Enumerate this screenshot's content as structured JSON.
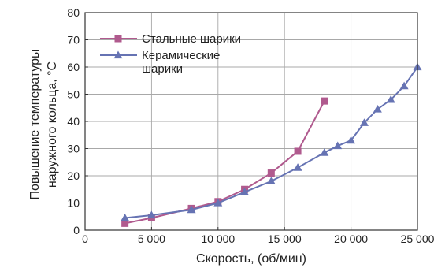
{
  "chart_data": {
    "type": "line",
    "title": "",
    "top_text": "",
    "xlabel": "Скорость, (об/мин)",
    "ylabel_lines": [
      "Повышение температуры",
      "наружного кольца, °C"
    ],
    "xlim": [
      0,
      25000
    ],
    "ylim": [
      0,
      80
    ],
    "x_ticks": [
      0,
      5000,
      10000,
      15000,
      20000,
      25000
    ],
    "x_tick_labels": [
      "0",
      "5 000",
      "10 000",
      "15 000",
      "20 000",
      "25 000"
    ],
    "y_ticks": [
      0,
      10,
      20,
      30,
      40,
      50,
      60,
      70,
      80
    ],
    "y_tick_labels": [
      "0",
      "10",
      "20",
      "30",
      "40",
      "50",
      "60",
      "70",
      "80"
    ],
    "grid": true,
    "legend_position": "top-left",
    "series": [
      {
        "name": "Стальные шарики",
        "name_lines": [
          "Стальные шарики"
        ],
        "color": "#b05a8e",
        "marker": "square",
        "x": [
          3000,
          5000,
          8000,
          10000,
          12000,
          14000,
          16000,
          18000
        ],
        "y": [
          2.5,
          4.5,
          8,
          10.5,
          15,
          21,
          29,
          47.5
        ]
      },
      {
        "name": "Керамические шарики",
        "name_lines": [
          "Керамические",
          "шарики"
        ],
        "color": "#6673b3",
        "marker": "triangle",
        "x": [
          3000,
          5000,
          8000,
          10000,
          12000,
          14000,
          16000,
          18000,
          19000,
          20000,
          21000,
          22000,
          23000,
          24000,
          25000
        ],
        "y": [
          4.5,
          5.5,
          7.5,
          10,
          14,
          18,
          23,
          28.5,
          31,
          33,
          39.5,
          44.5,
          48,
          53,
          60
        ]
      }
    ]
  }
}
